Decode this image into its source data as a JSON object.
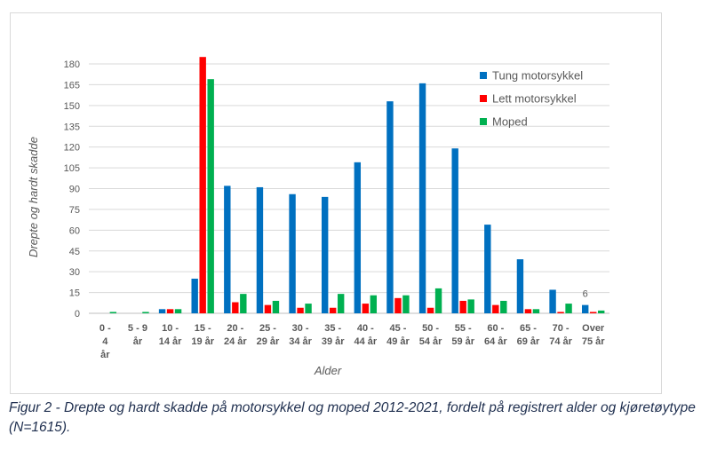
{
  "chart_data": {
    "type": "bar",
    "title": "",
    "xlabel": "Alder",
    "ylabel": "Drepte og hardt skadde",
    "ylim": [
      0,
      180
    ],
    "yticks": [
      0,
      15,
      30,
      45,
      60,
      75,
      90,
      105,
      120,
      135,
      150,
      165,
      180
    ],
    "grid": true,
    "legend_position": "top-right",
    "categories": [
      [
        "0 -",
        "4",
        "år"
      ],
      [
        "5 - 9",
        "år"
      ],
      [
        "10 -",
        "14 år"
      ],
      [
        "15 -",
        "19 år"
      ],
      [
        "20 -",
        "24 år"
      ],
      [
        "25 -",
        "29 år"
      ],
      [
        "30 -",
        "34 år"
      ],
      [
        "35 -",
        "39 år"
      ],
      [
        "40 -",
        "44 år"
      ],
      [
        "45 -",
        "49 år"
      ],
      [
        "50 -",
        "54 år"
      ],
      [
        "55 -",
        "59 år"
      ],
      [
        "60 -",
        "64 år"
      ],
      [
        "65 -",
        "69 år"
      ],
      [
        "70 -",
        "74 år"
      ],
      [
        "Over",
        "75 år"
      ]
    ],
    "series": [
      {
        "name": "Tung motorsykkel",
        "color": "#0070c0",
        "values": [
          0,
          0,
          3,
          25,
          92,
          91,
          86,
          84,
          109,
          153,
          166,
          119,
          64,
          39,
          17,
          6
        ]
      },
      {
        "name": "Lett motorsykkel",
        "color": "#ff0000",
        "values": [
          0,
          0,
          3,
          185,
          8,
          6,
          4,
          4,
          7,
          11,
          4,
          9,
          6,
          3,
          1,
          1
        ]
      },
      {
        "name": "Moped",
        "color": "#00b050",
        "values": [
          1,
          1,
          3,
          169,
          14,
          9,
          7,
          14,
          13,
          13,
          18,
          10,
          9,
          3,
          7,
          2
        ]
      }
    ],
    "annotations": [
      {
        "text": "6",
        "category_index": 15,
        "series_index": 0
      }
    ]
  },
  "caption": "Figur 2 - Drepte og hardt skadde på motorsykkel og moped 2012-2021, fordelt på registrert alder og kjøretøytype (N=1615)."
}
